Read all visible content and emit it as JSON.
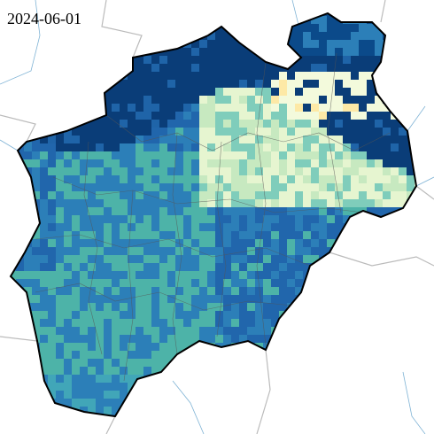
{
  "date": "2024-06-01"
}
